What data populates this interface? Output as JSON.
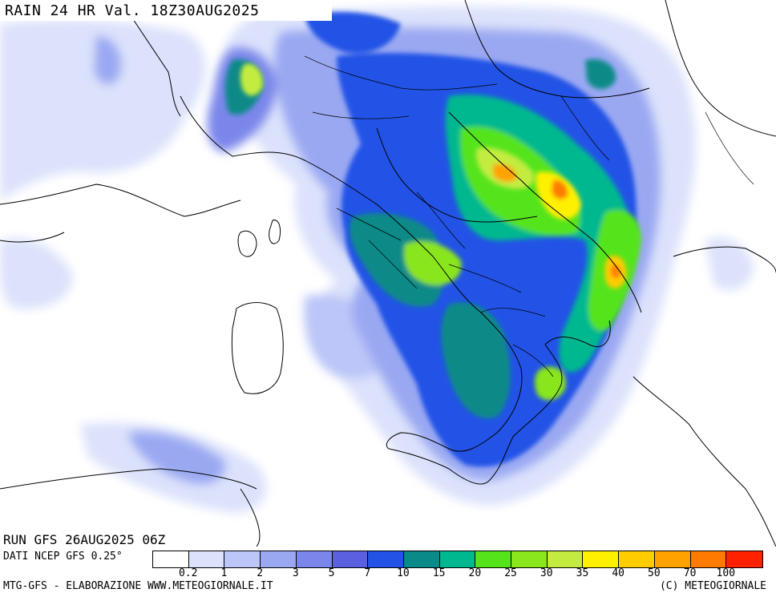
{
  "title": "RAIN 24 HR Val. 18Z30AUG2025",
  "run_label": "RUN GFS 26AUG2025 06Z",
  "source_label": "DATI NCEP GFS 0.25°",
  "footer_left": "MTG-GFS - ELABORAZIONE WWW.METEOGIORNALE.IT",
  "footer_right": "(C) METEOGIORNALE",
  "legend": {
    "colors": [
      "#ffffff",
      "#dce2fb",
      "#bcc6f8",
      "#9aa8f2",
      "#7a86ea",
      "#5a60e0",
      "#2353e6",
      "#0a8a88",
      "#00b890",
      "#55e41a",
      "#8ae61d",
      "#c4ec40",
      "#fff000",
      "#ffcc00",
      "#ffa200",
      "#ff7a00",
      "#ff2200"
    ],
    "labels": [
      "0.2",
      "1",
      "2",
      "3",
      "5",
      "7",
      "10",
      "15",
      "20",
      "25",
      "30",
      "35",
      "40",
      "50",
      "70",
      "100"
    ]
  },
  "colors": {
    "map_background": "#ffffff",
    "border": "#000000",
    "light_rain": "#dce2fb",
    "moderate_rain": "#2353e6",
    "heavy_rain": "#fff000",
    "extreme_rain": "#ff7a00"
  }
}
